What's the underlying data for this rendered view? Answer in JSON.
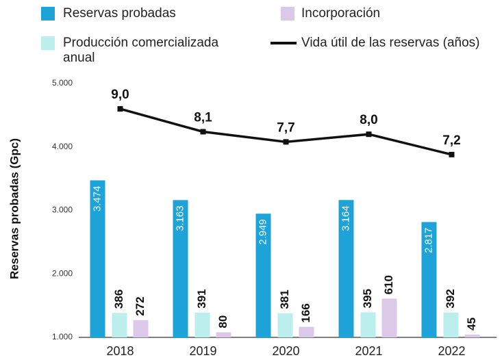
{
  "chart_data": {
    "type": "bar",
    "y_label": "Reservas probadas (Gpc)",
    "categories": [
      "2018",
      "2019",
      "2020",
      "2021",
      "2022"
    ],
    "ylim": [
      1000,
      5000
    ],
    "yticks": [
      {
        "value": 1000,
        "label": "1.000"
      },
      {
        "value": 2000,
        "label": "2.000"
      },
      {
        "value": 3000,
        "label": "3.000"
      },
      {
        "value": 4000,
        "label": "4.000"
      },
      {
        "value": 5000,
        "label": "5.000"
      }
    ],
    "y2lim": [
      0,
      4000
    ],
    "y3lim": [
      0,
      10
    ],
    "series": [
      {
        "name": "Reservas probadas",
        "color": "#1ea3d8",
        "values": [
          3474,
          3163,
          2949,
          3164,
          2817
        ],
        "value_labels": [
          "3.474",
          "3.163",
          "2.949",
          "3.164",
          "2.817"
        ]
      },
      {
        "name": "Producción comercializada anual",
        "color": "#bdeeee",
        "values": [
          386,
          391,
          381,
          395,
          392
        ],
        "axis": "y2"
      },
      {
        "name": "Incorporación",
        "color": "#dcc8e8",
        "values": [
          272,
          80,
          166,
          610,
          45
        ],
        "axis": "y2"
      },
      {
        "name": "Vida útil de las reservas (años)",
        "type": "line",
        "color": "#111111",
        "values": [
          9.0,
          8.1,
          7.7,
          8.0,
          7.2
        ],
        "value_labels": [
          "9,0",
          "8,1",
          "7,7",
          "8,0",
          "7,2"
        ],
        "axis": "y3"
      }
    ]
  }
}
